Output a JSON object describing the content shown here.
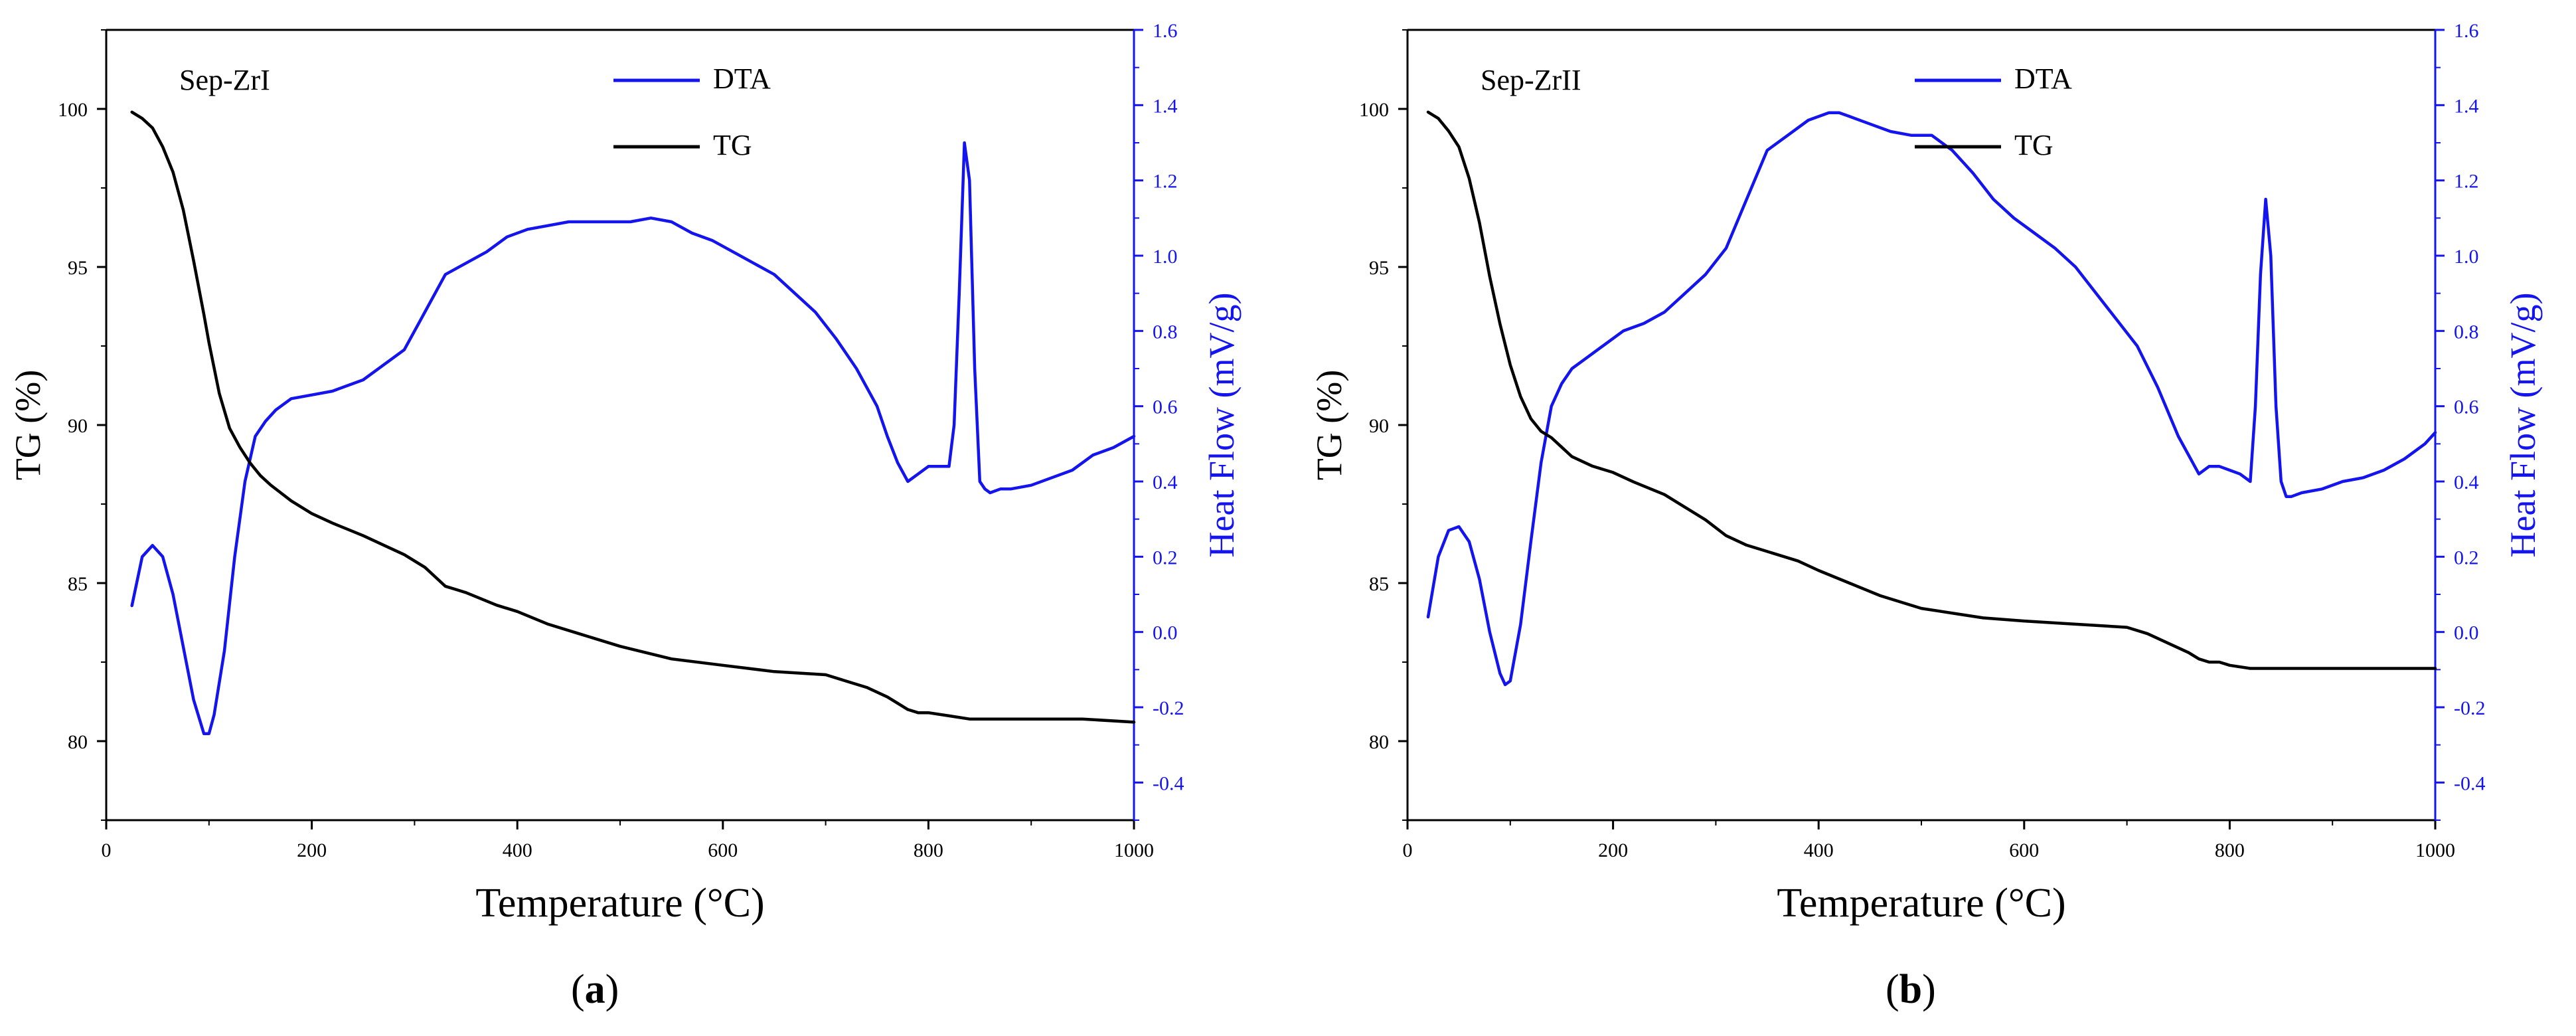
{
  "panels": [
    {
      "label_open": "(",
      "label_letter": "a",
      "label_close": ")"
    },
    {
      "label_open": "(",
      "label_letter": "b",
      "label_close": ")"
    }
  ],
  "chart_data": [
    {
      "type": "line",
      "title": "Sep-ZrI",
      "xlabel": "Temperature (°C)",
      "ylabel": "TG (%)",
      "y2label": "Heat Flow (mV/g)",
      "xlim": [
        0,
        1000
      ],
      "ylim": [
        77.5,
        102.5
      ],
      "y2lim": [
        -0.5,
        1.6
      ],
      "xticks": [
        0,
        200,
        400,
        600,
        800,
        1000
      ],
      "yticks": [
        80,
        85,
        90,
        95,
        100
      ],
      "y2ticks": [
        -0.4,
        -0.2,
        0.0,
        0.2,
        0.4,
        0.6,
        0.8,
        1.0,
        1.2,
        1.4,
        1.6
      ],
      "y2ticklabels": [
        "-0.4",
        "-0.2",
        "0.0",
        "0.2",
        "0.4",
        "0.6",
        "0.8",
        "1.0",
        "1.2",
        "1.4",
        "1.6"
      ],
      "grid": false,
      "legend_position": "top-center",
      "colors": {
        "TG": "#000000",
        "DTA": "#1414ee",
        "axis2": "#1414ee"
      },
      "series": [
        {
          "name": "DTA",
          "axis": "right",
          "x": [
            25,
            35,
            45,
            55,
            65,
            75,
            85,
            95,
            100,
            105,
            115,
            125,
            135,
            145,
            155,
            165,
            180,
            200,
            220,
            250,
            270,
            290,
            310,
            330,
            350,
            370,
            390,
            410,
            430,
            450,
            470,
            490,
            510,
            530,
            550,
            570,
            590,
            610,
            630,
            650,
            670,
            690,
            710,
            730,
            750,
            760,
            770,
            780,
            790,
            800,
            815,
            820,
            825,
            830,
            835,
            840,
            845,
            850,
            855,
            860,
            870,
            880,
            900,
            920,
            940,
            960,
            980,
            1000
          ],
          "y": [
            0.07,
            0.2,
            0.23,
            0.2,
            0.1,
            -0.04,
            -0.18,
            -0.27,
            -0.27,
            -0.22,
            -0.05,
            0.2,
            0.4,
            0.52,
            0.56,
            0.59,
            0.62,
            0.63,
            0.64,
            0.67,
            0.71,
            0.75,
            0.85,
            0.95,
            0.98,
            1.01,
            1.05,
            1.07,
            1.08,
            1.09,
            1.09,
            1.09,
            1.09,
            1.1,
            1.09,
            1.06,
            1.04,
            1.01,
            0.98,
            0.95,
            0.9,
            0.85,
            0.78,
            0.7,
            0.6,
            0.52,
            0.45,
            0.4,
            0.42,
            0.44,
            0.44,
            0.44,
            0.55,
            0.9,
            1.3,
            1.2,
            0.7,
            0.4,
            0.38,
            0.37,
            0.38,
            0.38,
            0.39,
            0.41,
            0.43,
            0.47,
            0.49,
            0.52
          ]
        },
        {
          "name": "TG",
          "axis": "left",
          "x": [
            25,
            35,
            45,
            55,
            65,
            75,
            85,
            95,
            100,
            110,
            120,
            130,
            140,
            150,
            160,
            180,
            200,
            220,
            250,
            270,
            290,
            310,
            320,
            330,
            340,
            350,
            380,
            400,
            430,
            460,
            500,
            550,
            600,
            650,
            700,
            720,
            740,
            760,
            770,
            780,
            790,
            800,
            820,
            840,
            860,
            900,
            950,
            1000
          ],
          "y": [
            99.9,
            99.7,
            99.4,
            98.8,
            98,
            96.8,
            95.2,
            93.5,
            92.6,
            91,
            89.9,
            89.3,
            88.8,
            88.4,
            88.1,
            87.6,
            87.2,
            86.9,
            86.5,
            86.2,
            85.9,
            85.5,
            85.2,
            84.9,
            84.8,
            84.7,
            84.3,
            84.1,
            83.7,
            83.4,
            83,
            82.6,
            82.4,
            82.2,
            82.1,
            81.9,
            81.7,
            81.4,
            81.2,
            81,
            80.9,
            80.9,
            80.8,
            80.7,
            80.7,
            80.7,
            80.7,
            80.6
          ]
        }
      ],
      "legend": [
        {
          "name": "DTA",
          "color": "#1414ee"
        },
        {
          "name": "TG",
          "color": "#000000"
        }
      ]
    },
    {
      "type": "line",
      "title": "Sep-ZrII",
      "xlabel": "Temperature (°C)",
      "ylabel": "TG (%)",
      "y2label": "Heat Flow (mV/g)",
      "xlim": [
        0,
        1000
      ],
      "ylim": [
        77.5,
        102.5
      ],
      "y2lim": [
        -0.5,
        1.6
      ],
      "xticks": [
        0,
        200,
        400,
        600,
        800,
        1000
      ],
      "yticks": [
        80,
        85,
        90,
        95,
        100
      ],
      "y2ticks": [
        -0.4,
        -0.2,
        0.0,
        0.2,
        0.4,
        0.6,
        0.8,
        1.0,
        1.2,
        1.4,
        1.6
      ],
      "y2ticklabels": [
        "-0.4",
        "-0.2",
        "0.0",
        "0.2",
        "0.4",
        "0.6",
        "0.8",
        "1.0",
        "1.2",
        "1.4",
        "1.6"
      ],
      "grid": false,
      "legend_position": "top-center",
      "colors": {
        "TG": "#000000",
        "DTA": "#1414ee",
        "axis2": "#1414ee"
      },
      "series": [
        {
          "name": "DTA",
          "axis": "right",
          "x": [
            20,
            30,
            40,
            50,
            60,
            70,
            80,
            90,
            95,
            100,
            110,
            120,
            130,
            140,
            150,
            160,
            170,
            190,
            210,
            230,
            250,
            270,
            290,
            310,
            330,
            350,
            370,
            390,
            410,
            420,
            430,
            450,
            470,
            490,
            510,
            530,
            550,
            570,
            590,
            610,
            630,
            650,
            670,
            690,
            710,
            730,
            750,
            770,
            780,
            790,
            800,
            810,
            820,
            825,
            830,
            835,
            840,
            845,
            850,
            855,
            860,
            870,
            890,
            910,
            930,
            950,
            970,
            990,
            1000
          ],
          "y": [
            0.04,
            0.2,
            0.27,
            0.28,
            0.24,
            0.14,
            0.0,
            -0.11,
            -0.14,
            -0.13,
            0.02,
            0.24,
            0.45,
            0.6,
            0.66,
            0.7,
            0.72,
            0.76,
            0.8,
            0.82,
            0.85,
            0.9,
            0.95,
            1.02,
            1.15,
            1.28,
            1.32,
            1.36,
            1.38,
            1.38,
            1.37,
            1.35,
            1.33,
            1.32,
            1.32,
            1.28,
            1.22,
            1.15,
            1.1,
            1.06,
            1.02,
            0.97,
            0.9,
            0.83,
            0.76,
            0.65,
            0.52,
            0.42,
            0.44,
            0.44,
            0.43,
            0.42,
            0.4,
            0.6,
            0.95,
            1.15,
            1.0,
            0.6,
            0.4,
            0.36,
            0.36,
            0.37,
            0.38,
            0.4,
            0.41,
            0.43,
            0.46,
            0.5,
            0.53
          ]
        },
        {
          "name": "TG",
          "axis": "left",
          "x": [
            20,
            30,
            40,
            50,
            60,
            70,
            80,
            90,
            100,
            110,
            120,
            130,
            140,
            150,
            160,
            180,
            200,
            220,
            250,
            270,
            290,
            310,
            330,
            350,
            380,
            400,
            430,
            460,
            500,
            540,
            560,
            600,
            650,
            700,
            720,
            740,
            760,
            770,
            780,
            790,
            800,
            820,
            840,
            860,
            900,
            950,
            1000
          ],
          "y": [
            99.9,
            99.7,
            99.3,
            98.8,
            97.8,
            96.4,
            94.7,
            93.2,
            91.9,
            90.9,
            90.2,
            89.8,
            89.6,
            89.3,
            89.0,
            88.7,
            88.5,
            88.2,
            87.8,
            87.4,
            87.0,
            86.5,
            86.2,
            86.0,
            85.7,
            85.4,
            85.0,
            84.6,
            84.2,
            84.0,
            83.9,
            83.8,
            83.7,
            83.6,
            83.4,
            83.1,
            82.8,
            82.6,
            82.5,
            82.5,
            82.4,
            82.3,
            82.3,
            82.3,
            82.3,
            82.3,
            82.3
          ]
        }
      ],
      "legend": [
        {
          "name": "DTA",
          "color": "#1414ee"
        },
        {
          "name": "TG",
          "color": "#000000"
        }
      ]
    }
  ]
}
